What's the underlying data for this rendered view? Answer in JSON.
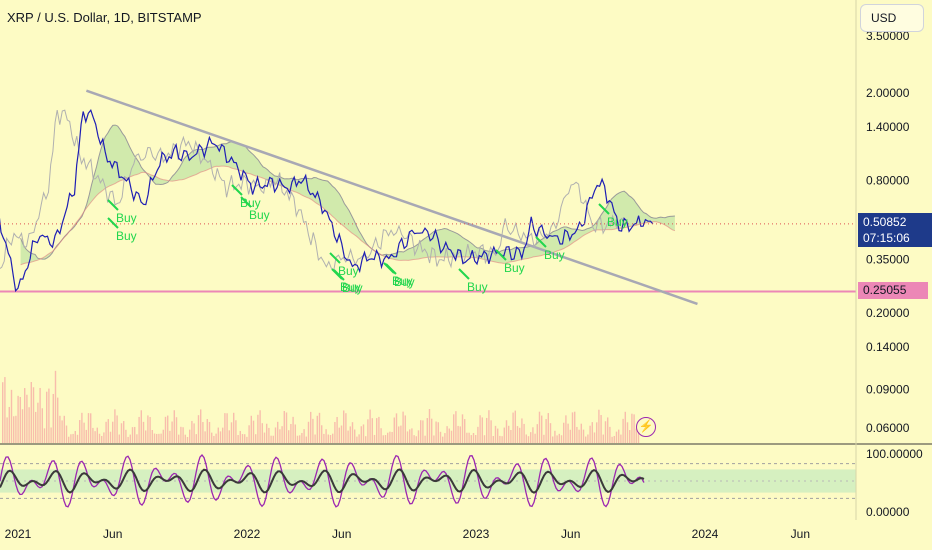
{
  "header": {
    "title": "XRP / U.S. Dollar, 1D, BITSTAMP",
    "currency_button": "USD"
  },
  "price_tags": {
    "last_price": "0.50852",
    "countdown": "07:15:06",
    "support_level": "0.25055"
  },
  "icons": {
    "alert": "lightning-icon"
  },
  "colors": {
    "background": "#fdfbc4",
    "price_line": "#1e1eb4",
    "lagging_line": "#b0b0b0",
    "cloud_fill": "#c5e6a6",
    "cloud_border": "#9a9a9a",
    "trendline": "#a8a8b4",
    "support_line": "#ec87b6",
    "buy_signal": "#22d64e",
    "volume": "#f5a3a3",
    "oscillator_fast": "#9c27b0",
    "oscillator_slow": "#3a3a3a",
    "oscillator_band": "#d6f0c0"
  },
  "chart_data": {
    "type": "line",
    "y_scale": "log",
    "ylim": [
      0.045,
      3.5
    ],
    "x_ticks": [
      "2021",
      "Jun",
      "2022",
      "Jun",
      "2023",
      "Jun",
      "2024",
      "Jun"
    ],
    "y_ticks": [
      "2.00000",
      "1.40000",
      "0.80000",
      "0.35000",
      "0.20000",
      "0.14000",
      "0.09000",
      "0.06000"
    ],
    "y_tick_values": [
      2.0,
      1.4,
      0.8,
      0.35,
      0.2,
      0.14,
      0.09,
      0.06
    ],
    "y_tick_partial": "3.50000",
    "series": [
      {
        "name": "",
        "x": [
          "2020-12-01",
          "2021-01-01",
          "2021-02-01",
          "2021-03-01",
          "2021-04-01",
          "2021-04-15",
          "2021-05-01",
          "2021-05-20",
          "2021-06-15",
          "2021-07-20",
          "2021-08-15",
          "2021-09-10",
          "2021-10-01",
          "2021-11-10",
          "2021-12-15",
          "2022-01-10",
          "2022-02-10",
          "2022-03-10",
          "2022-03-28",
          "2022-05-01",
          "2022-06-01",
          "2022-06-18",
          "2022-07-15",
          "2022-08-15",
          "2022-09-25",
          "2022-10-20",
          "2022-11-10",
          "2022-12-15",
          "2023-01-10",
          "2023-02-10",
          "2023-03-15",
          "2023-03-30",
          "2023-04-20",
          "2023-05-15",
          "2023-06-15",
          "2023-07-13",
          "2023-07-25",
          "2023-08-17",
          "2023-09-10",
          "2023-09-28",
          "2023-10-10"
        ],
        "values": [
          0.55,
          0.25,
          0.45,
          0.42,
          0.75,
          1.65,
          1.55,
          1.05,
          0.85,
          0.62,
          0.98,
          1.08,
          1.02,
          1.2,
          0.93,
          0.75,
          0.78,
          0.74,
          0.82,
          0.62,
          0.4,
          0.32,
          0.36,
          0.35,
          0.47,
          0.46,
          0.4,
          0.35,
          0.36,
          0.38,
          0.37,
          0.5,
          0.46,
          0.43,
          0.48,
          0.78,
          0.74,
          0.5,
          0.5,
          0.53,
          0.50852
        ]
      }
    ],
    "support_level": 0.25055,
    "last_price": 0.50852,
    "trendline": {
      "from_date": "2021-04-20",
      "from_value": 2.05,
      "to_date": "2023-12-20",
      "to_value": 0.22
    },
    "buy_signals": [
      "Buy",
      "Buy",
      "Buy",
      "Buy",
      "Buy",
      "Buy",
      "Buy",
      "Buy",
      "Buy",
      "Buy",
      "Buy",
      "Buy",
      "Buy"
    ],
    "oscillator": {
      "ylim": [
        0,
        100
      ],
      "y_ticks": [
        "100.00000",
        "0.00000"
      ],
      "band": [
        30,
        70
      ]
    }
  }
}
